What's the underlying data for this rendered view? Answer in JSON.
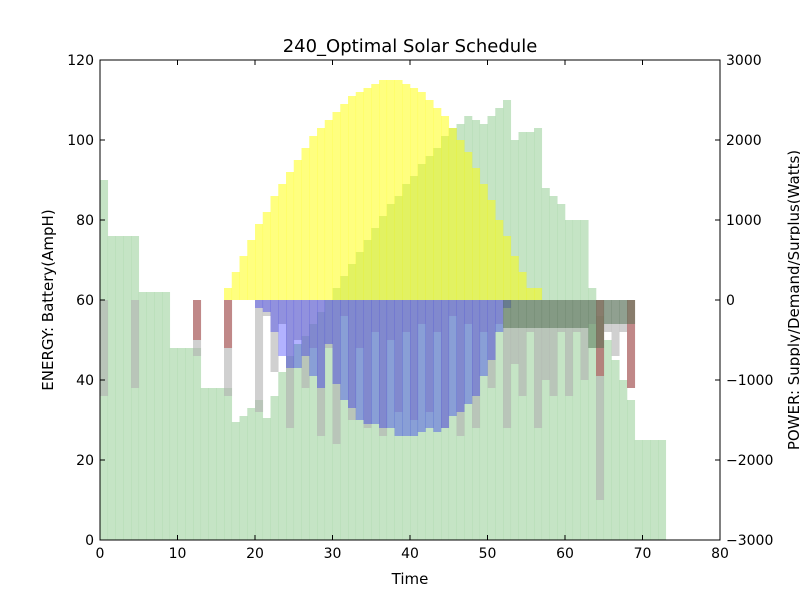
{
  "chart_data": {
    "type": "bar",
    "title": "240_Optimal Solar Schedule",
    "xlabel": "Time",
    "ylabel_left": "ENERGY: Battery(AmpH)",
    "ylabel_right": "POWER: Supply/Demand/Surplus(Watts)",
    "xlim": [
      0,
      80
    ],
    "ylim_left": [
      0,
      120
    ],
    "ylim_right": [
      -3000,
      3000
    ],
    "xticks": [
      "0",
      "10",
      "20",
      "30",
      "40",
      "50",
      "60",
      "70",
      "80"
    ],
    "yticks_left": [
      "0",
      "20",
      "40",
      "60",
      "80",
      "100",
      "120"
    ],
    "yticks_right": [
      "−3000",
      "−2000",
      "−1000",
      "0",
      "1000",
      "2000",
      "3000"
    ],
    "grid": false,
    "bar_width": 1,
    "series": [
      {
        "role": "battery",
        "axis": "left",
        "color": "#8bc98b",
        "opacity": 0.5,
        "segments": [
          [
            0,
            90
          ],
          [
            1,
            76
          ],
          [
            5,
            62
          ],
          [
            9,
            48
          ],
          [
            13,
            38
          ],
          [
            17,
            29.5
          ],
          [
            18,
            31
          ],
          [
            19,
            33
          ],
          [
            20,
            35
          ],
          [
            21,
            30.5
          ],
          [
            22,
            36
          ],
          [
            23,
            42
          ],
          [
            24,
            46
          ],
          [
            25,
            49
          ],
          [
            26,
            51
          ],
          [
            27,
            54
          ],
          [
            28,
            57
          ],
          [
            29,
            60
          ],
          [
            30,
            63
          ],
          [
            31,
            66
          ],
          [
            32,
            69
          ],
          [
            33,
            72
          ],
          [
            34,
            75
          ],
          [
            35,
            78
          ],
          [
            36,
            81
          ],
          [
            37,
            84
          ],
          [
            38,
            86
          ],
          [
            39,
            89
          ],
          [
            40,
            91
          ],
          [
            41,
            94
          ],
          [
            42,
            96
          ],
          [
            43,
            98
          ],
          [
            44,
            101
          ],
          [
            45,
            103
          ],
          [
            46,
            104
          ],
          [
            47,
            106
          ],
          [
            48,
            105
          ],
          [
            49,
            104
          ],
          [
            50,
            106
          ],
          [
            51,
            108
          ],
          [
            52,
            110
          ],
          [
            53,
            100
          ],
          [
            54,
            102
          ],
          [
            55,
            102
          ],
          [
            56,
            103
          ],
          [
            57,
            88
          ],
          [
            58,
            86
          ],
          [
            59,
            84
          ],
          [
            60,
            80
          ],
          [
            61,
            80
          ],
          [
            62,
            80
          ],
          [
            63,
            63
          ],
          [
            64,
            56
          ],
          [
            65,
            50
          ],
          [
            66,
            45
          ],
          [
            67,
            40
          ],
          [
            68,
            35
          ],
          [
            69,
            25
          ],
          [
            70,
            25
          ],
          [
            71,
            25
          ],
          [
            72,
            25
          ]
        ]
      },
      {
        "role": "supply",
        "axis": "right",
        "color": "#ffff00",
        "opacity": 0.5,
        "segments": [
          [
            16,
            150
          ],
          [
            17,
            350
          ],
          [
            18,
            550
          ],
          [
            19,
            750
          ],
          [
            20,
            950
          ],
          [
            21,
            1100
          ],
          [
            22,
            1300
          ],
          [
            23,
            1450
          ],
          [
            24,
            1600
          ],
          [
            25,
            1750
          ],
          [
            26,
            1900
          ],
          [
            27,
            2050
          ],
          [
            28,
            2150
          ],
          [
            29,
            2250
          ],
          [
            30,
            2350
          ],
          [
            31,
            2450
          ],
          [
            32,
            2550
          ],
          [
            33,
            2600
          ],
          [
            34,
            2650
          ],
          [
            35,
            2700
          ],
          [
            36,
            2750
          ],
          [
            37,
            2750
          ],
          [
            38,
            2750
          ],
          [
            39,
            2700
          ],
          [
            40,
            2650
          ],
          [
            41,
            2600
          ],
          [
            42,
            2500
          ],
          [
            43,
            2400
          ],
          [
            44,
            2300
          ],
          [
            45,
            2150
          ],
          [
            46,
            2000
          ],
          [
            47,
            1850
          ],
          [
            48,
            1650
          ],
          [
            49,
            1450
          ],
          [
            50,
            1250
          ],
          [
            51,
            1000
          ],
          [
            52,
            800
          ],
          [
            53,
            550
          ],
          [
            54,
            350
          ],
          [
            55,
            150
          ],
          [
            56,
            150
          ]
        ]
      },
      {
        "role": "demand",
        "axis": "right",
        "color": "#b0b0b0",
        "opacity": 0.6,
        "segments": [
          [
            0,
            -1200
          ],
          [
            1,
            0
          ],
          [
            4,
            -1100
          ],
          [
            5,
            0
          ],
          [
            12,
            -700
          ],
          [
            13,
            0
          ],
          [
            16,
            -1200
          ],
          [
            17,
            0
          ],
          [
            20,
            -1400
          ],
          [
            21,
            -200
          ],
          [
            22,
            -900
          ],
          [
            23,
            -300
          ],
          [
            24,
            -1600
          ],
          [
            25,
            -500
          ],
          [
            26,
            -1100
          ],
          [
            27,
            -600
          ],
          [
            28,
            -1700
          ],
          [
            29,
            -600
          ],
          [
            30,
            -1800
          ],
          [
            31,
            -200
          ],
          [
            32,
            -1500
          ],
          [
            33,
            -600
          ],
          [
            34,
            -1600
          ],
          [
            35,
            -400
          ],
          [
            36,
            -1700
          ],
          [
            37,
            -500
          ],
          [
            38,
            -1400
          ],
          [
            39,
            -400
          ],
          [
            40,
            -1500
          ],
          [
            41,
            -300
          ],
          [
            42,
            -1400
          ],
          [
            43,
            -400
          ],
          [
            44,
            -1600
          ],
          [
            45,
            -200
          ],
          [
            46,
            -1700
          ],
          [
            47,
            -300
          ],
          [
            48,
            -1600
          ],
          [
            49,
            -400
          ],
          [
            50,
            -1100
          ],
          [
            51,
            -300
          ],
          [
            52,
            -1600
          ],
          [
            53,
            -800
          ],
          [
            54,
            -1200
          ],
          [
            55,
            -400
          ],
          [
            56,
            -1600
          ],
          [
            57,
            -1000
          ],
          [
            58,
            -1200
          ],
          [
            59,
            -400
          ],
          [
            60,
            -1200
          ],
          [
            61,
            -400
          ],
          [
            62,
            -1000
          ],
          [
            63,
            -300
          ],
          [
            64,
            -2500
          ],
          [
            65,
            -400
          ],
          [
            66,
            -700
          ],
          [
            67,
            -400
          ],
          [
            68,
            -1100
          ],
          [
            69,
            0
          ]
        ]
      },
      {
        "role": "surplus",
        "axis": "right",
        "color": "#0000ff",
        "opacity": 0.3,
        "segments": [
          [
            20,
            -100
          ],
          [
            21,
            -150
          ],
          [
            22,
            -400
          ],
          [
            23,
            -700
          ],
          [
            24,
            -850
          ],
          [
            25,
            -850
          ],
          [
            26,
            -700
          ],
          [
            27,
            -950
          ],
          [
            28,
            -1100
          ],
          [
            29,
            -550
          ],
          [
            30,
            -1050
          ],
          [
            31,
            -1250
          ],
          [
            32,
            -1350
          ],
          [
            33,
            -1500
          ],
          [
            34,
            -1550
          ],
          [
            35,
            -1550
          ],
          [
            36,
            -1600
          ],
          [
            37,
            -1600
          ],
          [
            38,
            -1700
          ],
          [
            39,
            -1700
          ],
          [
            40,
            -1700
          ],
          [
            41,
            -1650
          ],
          [
            42,
            -1600
          ],
          [
            43,
            -1650
          ],
          [
            44,
            -1600
          ],
          [
            45,
            -1450
          ],
          [
            46,
            -1400
          ],
          [
            47,
            -1300
          ],
          [
            48,
            -1200
          ],
          [
            49,
            -950
          ],
          [
            50,
            -750
          ],
          [
            51,
            -400
          ],
          [
            52,
            -100
          ]
        ]
      },
      {
        "role": "deficit",
        "axis": "right",
        "color": "#b04040",
        "opacity": 0.5,
        "segments": [
          [
            12,
            -500
          ],
          [
            13,
            0
          ],
          [
            16,
            -600
          ],
          [
            17,
            0
          ],
          [
            64,
            -950
          ],
          [
            65,
            0
          ],
          [
            68,
            -1100
          ],
          [
            69,
            0
          ]
        ]
      },
      {
        "role": "net",
        "axis": "right",
        "color": "#507050",
        "opacity": 0.5,
        "segments": [
          [
            52,
            -350
          ],
          [
            53,
            -350
          ],
          [
            54,
            -350
          ],
          [
            55,
            -350
          ],
          [
            56,
            -350
          ],
          [
            57,
            -350
          ],
          [
            58,
            -350
          ],
          [
            59,
            -350
          ],
          [
            60,
            -350
          ],
          [
            61,
            -350
          ],
          [
            62,
            -350
          ],
          [
            63,
            -600
          ],
          [
            64,
            -600
          ],
          [
            65,
            -300
          ],
          [
            66,
            -300
          ],
          [
            67,
            -300
          ],
          [
            68,
            -300
          ]
        ]
      }
    ]
  }
}
